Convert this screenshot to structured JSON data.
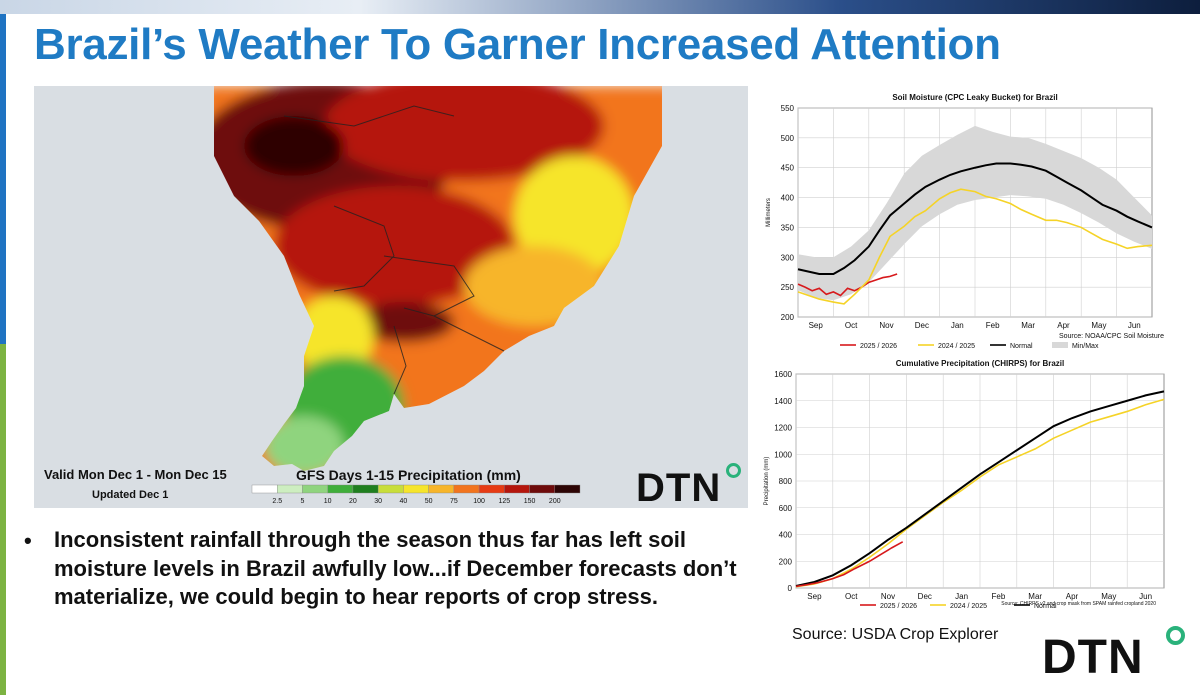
{
  "slide": {
    "title": "Brazil’s Weather To Garner Increased Attention",
    "bullet": "Inconsistent rainfall through the season thus far has left soil moisture levels in Brazil awfully low...if December forecasts don’t materialize, we could begin to hear reports of crop stress.",
    "source": "Source: USDA Crop Explorer",
    "logo": "DTN"
  },
  "map": {
    "valid_line": "Valid Mon Dec 1 - Mon Dec 15",
    "updated_line": "Updated Dec 1",
    "legend_title": "GFS Days 1-15 Precipitation (mm)",
    "legend_ticks": [
      "2.5",
      "5",
      "10",
      "20",
      "30",
      "40",
      "50",
      "75",
      "100",
      "125",
      "150",
      "200"
    ],
    "legend_colors": [
      "#ffffff",
      "#cdeec0",
      "#8fd47e",
      "#3fae3a",
      "#1f7f1f",
      "#c8de3a",
      "#f6e52b",
      "#f7b52a",
      "#f2741e",
      "#e63b14",
      "#b5160d",
      "#6e0b0b",
      "#2d0505"
    ],
    "colors": {
      "ocean": "#d9dee3",
      "land": "#f2f2ee"
    }
  },
  "chart_data": [
    {
      "type": "line",
      "title": "Soil Moisture (CPC Leaky Bucket) for Brazil",
      "xlabel": "",
      "ylabel": "Millimeters",
      "ylim": [
        200,
        550
      ],
      "yticks": [
        200,
        250,
        300,
        350,
        400,
        450,
        500,
        550
      ],
      "xlim": [
        0,
        10
      ],
      "xticks": [
        {
          "label": "Sep",
          "x": 0
        },
        {
          "label": "Oct",
          "x": 1
        },
        {
          "label": "Nov",
          "x": 2
        },
        {
          "label": "Dec",
          "x": 3
        },
        {
          "label": "Jan",
          "x": 4
        },
        {
          "label": "Feb",
          "x": 5
        },
        {
          "label": "Mar",
          "x": 6
        },
        {
          "label": "Apr",
          "x": 7
        },
        {
          "label": "May",
          "x": 8
        },
        {
          "label": "Jun",
          "x": 9
        }
      ],
      "source": "Source: NOAA/CPC Soil Moisture",
      "legend": [
        "2025 / 2026",
        "2024 / 2025",
        "Normal",
        "Min/Max"
      ],
      "band": {
        "name": "Min/Max",
        "x": [
          0,
          0.5,
          1,
          1.5,
          2,
          2.5,
          3,
          3.5,
          4,
          4.5,
          5,
          5.5,
          6,
          6.5,
          7,
          7.5,
          8,
          8.5,
          9,
          9.5,
          10
        ],
        "low": [
          245,
          232,
          228,
          238,
          258,
          290,
          322,
          352,
          372,
          388,
          396,
          400,
          404,
          402,
          398,
          388,
          374,
          358,
          340,
          326,
          314
        ],
        "high": [
          305,
          300,
          300,
          318,
          345,
          390,
          440,
          470,
          488,
          505,
          520,
          510,
          502,
          500,
          490,
          478,
          466,
          450,
          430,
          400,
          370
        ],
        "color": "#d8d8d8"
      },
      "series": [
        {
          "name": "2025 / 2026",
          "color": "#d7191c",
          "x": [
            0,
            0.2,
            0.4,
            0.6,
            0.8,
            1,
            1.2,
            1.4,
            1.6,
            1.8,
            2,
            2.2,
            2.4,
            2.6,
            2.8
          ],
          "values": [
            255,
            250,
            244,
            248,
            238,
            242,
            236,
            248,
            244,
            250,
            258,
            262,
            266,
            268,
            272
          ]
        },
        {
          "name": "2024 / 2025",
          "color": "#f5d327",
          "x": [
            0,
            0.3,
            0.6,
            1,
            1.3,
            1.6,
            2,
            2.3,
            2.6,
            3,
            3.3,
            3.6,
            4,
            4.3,
            4.6,
            5,
            5.3,
            5.6,
            6,
            6.3,
            6.6,
            7,
            7.3,
            7.6,
            8,
            8.3,
            8.6,
            9,
            9.3,
            9.6,
            10
          ],
          "values": [
            242,
            236,
            230,
            225,
            222,
            238,
            262,
            300,
            335,
            352,
            368,
            378,
            398,
            408,
            414,
            410,
            402,
            398,
            390,
            380,
            372,
            362,
            362,
            358,
            350,
            340,
            330,
            322,
            315,
            318,
            320
          ]
        },
        {
          "name": "Normal",
          "color": "#000000",
          "x": [
            0,
            0.3,
            0.6,
            1,
            1.3,
            1.6,
            2,
            2.3,
            2.6,
            3,
            3.3,
            3.6,
            4,
            4.3,
            4.6,
            5,
            5.3,
            5.6,
            6,
            6.3,
            6.6,
            7,
            7.3,
            7.6,
            8,
            8.3,
            8.6,
            9,
            9.3,
            9.6,
            10
          ],
          "values": [
            280,
            276,
            272,
            272,
            282,
            295,
            318,
            345,
            370,
            390,
            405,
            418,
            430,
            438,
            444,
            450,
            454,
            457,
            457,
            455,
            452,
            445,
            435,
            425,
            412,
            400,
            388,
            378,
            368,
            360,
            350
          ]
        }
      ]
    },
    {
      "type": "line",
      "title": "Cumulative Precipitation (CHIRPS) for Brazil",
      "xlabel": "",
      "ylabel": "Precipitation (mm)",
      "ylim": [
        0,
        1600
      ],
      "yticks": [
        0,
        200,
        400,
        600,
        800,
        1000,
        1200,
        1400,
        1600
      ],
      "xlim": [
        0,
        10
      ],
      "xticks": [
        {
          "label": "Sep",
          "x": 0
        },
        {
          "label": "Oct",
          "x": 1
        },
        {
          "label": "Nov",
          "x": 2
        },
        {
          "label": "Dec",
          "x": 3
        },
        {
          "label": "Jan",
          "x": 4
        },
        {
          "label": "Feb",
          "x": 5
        },
        {
          "label": "Mar",
          "x": 6
        },
        {
          "label": "Apr",
          "x": 7
        },
        {
          "label": "May",
          "x": 8
        },
        {
          "label": "Jun",
          "x": 9
        }
      ],
      "source": "Source: CHIRPS v2 and crop mask from SPAM rainfed cropland 2020",
      "legend": [
        "2025 / 2026",
        "2024 / 2025",
        "Normal"
      ],
      "series": [
        {
          "name": "2024 / 2025",
          "color": "#f5d327",
          "x": [
            0,
            0.5,
            1,
            1.5,
            2,
            2.5,
            3,
            3.5,
            4,
            4.5,
            5,
            5.5,
            6,
            6.5,
            7,
            7.5,
            8,
            8.5,
            9,
            9.5,
            10
          ],
          "values": [
            10,
            30,
            70,
            140,
            230,
            330,
            440,
            540,
            640,
            730,
            830,
            920,
            980,
            1040,
            1120,
            1180,
            1240,
            1280,
            1320,
            1370,
            1410
          ]
        },
        {
          "name": "Normal",
          "color": "#000000",
          "x": [
            0,
            0.5,
            1,
            1.5,
            2,
            2.5,
            3,
            3.5,
            4,
            4.5,
            5,
            5.5,
            6,
            6.5,
            7,
            7.5,
            8,
            8.5,
            9,
            9.5,
            10
          ],
          "values": [
            15,
            45,
            95,
            170,
            260,
            360,
            450,
            550,
            650,
            750,
            850,
            940,
            1030,
            1120,
            1210,
            1270,
            1320,
            1360,
            1400,
            1440,
            1470
          ]
        },
        {
          "name": "2025 / 2026",
          "color": "#d7191c",
          "x": [
            0,
            0.3,
            0.6,
            1,
            1.3,
            1.6,
            2,
            2.3,
            2.6,
            2.9
          ],
          "values": [
            12,
            25,
            40,
            70,
            100,
            145,
            200,
            250,
            300,
            345
          ]
        }
      ]
    }
  ]
}
